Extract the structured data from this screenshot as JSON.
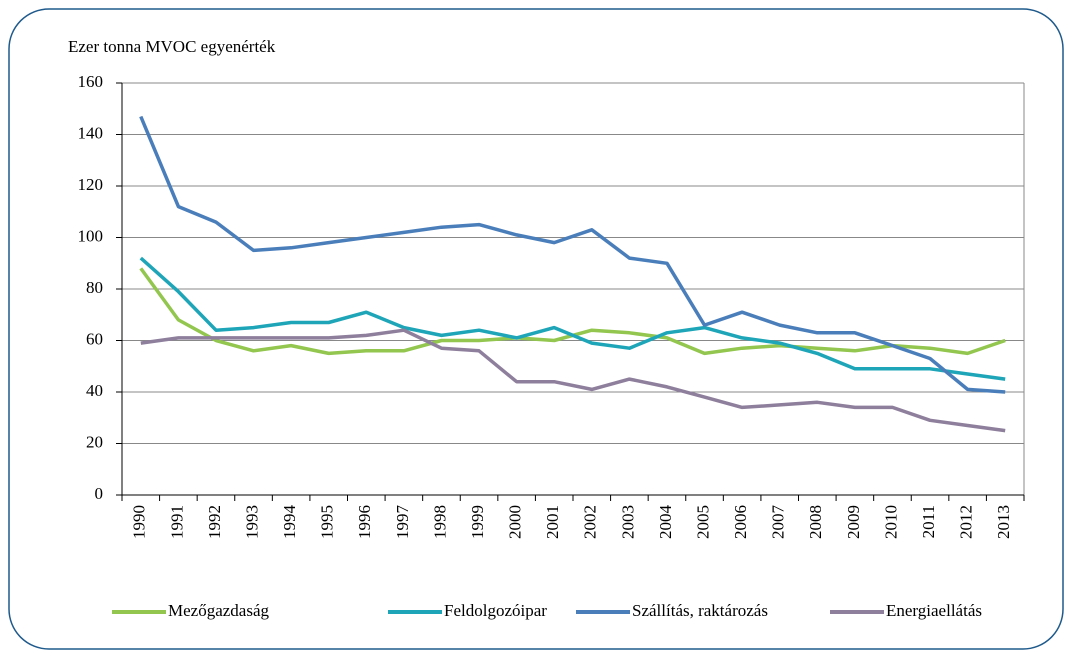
{
  "chart_data": {
    "type": "line",
    "y_label": "Ezer tonna MVOC egyenérték",
    "categories": [
      "1990",
      "1991",
      "1992",
      "1993",
      "1994",
      "1995",
      "1996",
      "1997",
      "1998",
      "1999",
      "2000",
      "2001",
      "2002",
      "2003",
      "2004",
      "2005",
      "2006",
      "2007",
      "2008",
      "2009",
      "2010",
      "2011",
      "2012",
      "2013"
    ],
    "series": [
      {
        "name": "Mezőgazdaság",
        "color": "#92c64e",
        "values": [
          88,
          68,
          60,
          56,
          58,
          55,
          56,
          56,
          60,
          60,
          61,
          60,
          64,
          63,
          61,
          55,
          57,
          58,
          57,
          56,
          58,
          57,
          55,
          60
        ]
      },
      {
        "name": "Feldolgozóipar",
        "color": "#1ea5b8",
        "values": [
          92,
          79,
          64,
          65,
          67,
          67,
          71,
          65,
          62,
          64,
          61,
          65,
          59,
          57,
          63,
          65,
          61,
          59,
          55,
          49,
          49,
          49,
          47,
          45
        ]
      },
      {
        "name": "Szállítás, raktározás",
        "color": "#4a7ebb",
        "values": [
          147,
          112,
          106,
          95,
          96,
          98,
          100,
          102,
          104,
          105,
          101,
          98,
          103,
          92,
          90,
          66,
          71,
          66,
          63,
          63,
          58,
          53,
          41,
          40
        ]
      },
      {
        "name": "Energiaellátás",
        "color": "#8e7f9c",
        "values": [
          59,
          61,
          61,
          61,
          61,
          61,
          62,
          64,
          57,
          56,
          44,
          44,
          41,
          45,
          42,
          38,
          34,
          35,
          36,
          34,
          34,
          29,
          27,
          25
        ]
      }
    ],
    "ylim": [
      0,
      160
    ],
    "yticks": [
      0,
      20,
      40,
      60,
      80,
      100,
      120,
      140,
      160
    ],
    "grid": true,
    "legend": "bottom"
  }
}
